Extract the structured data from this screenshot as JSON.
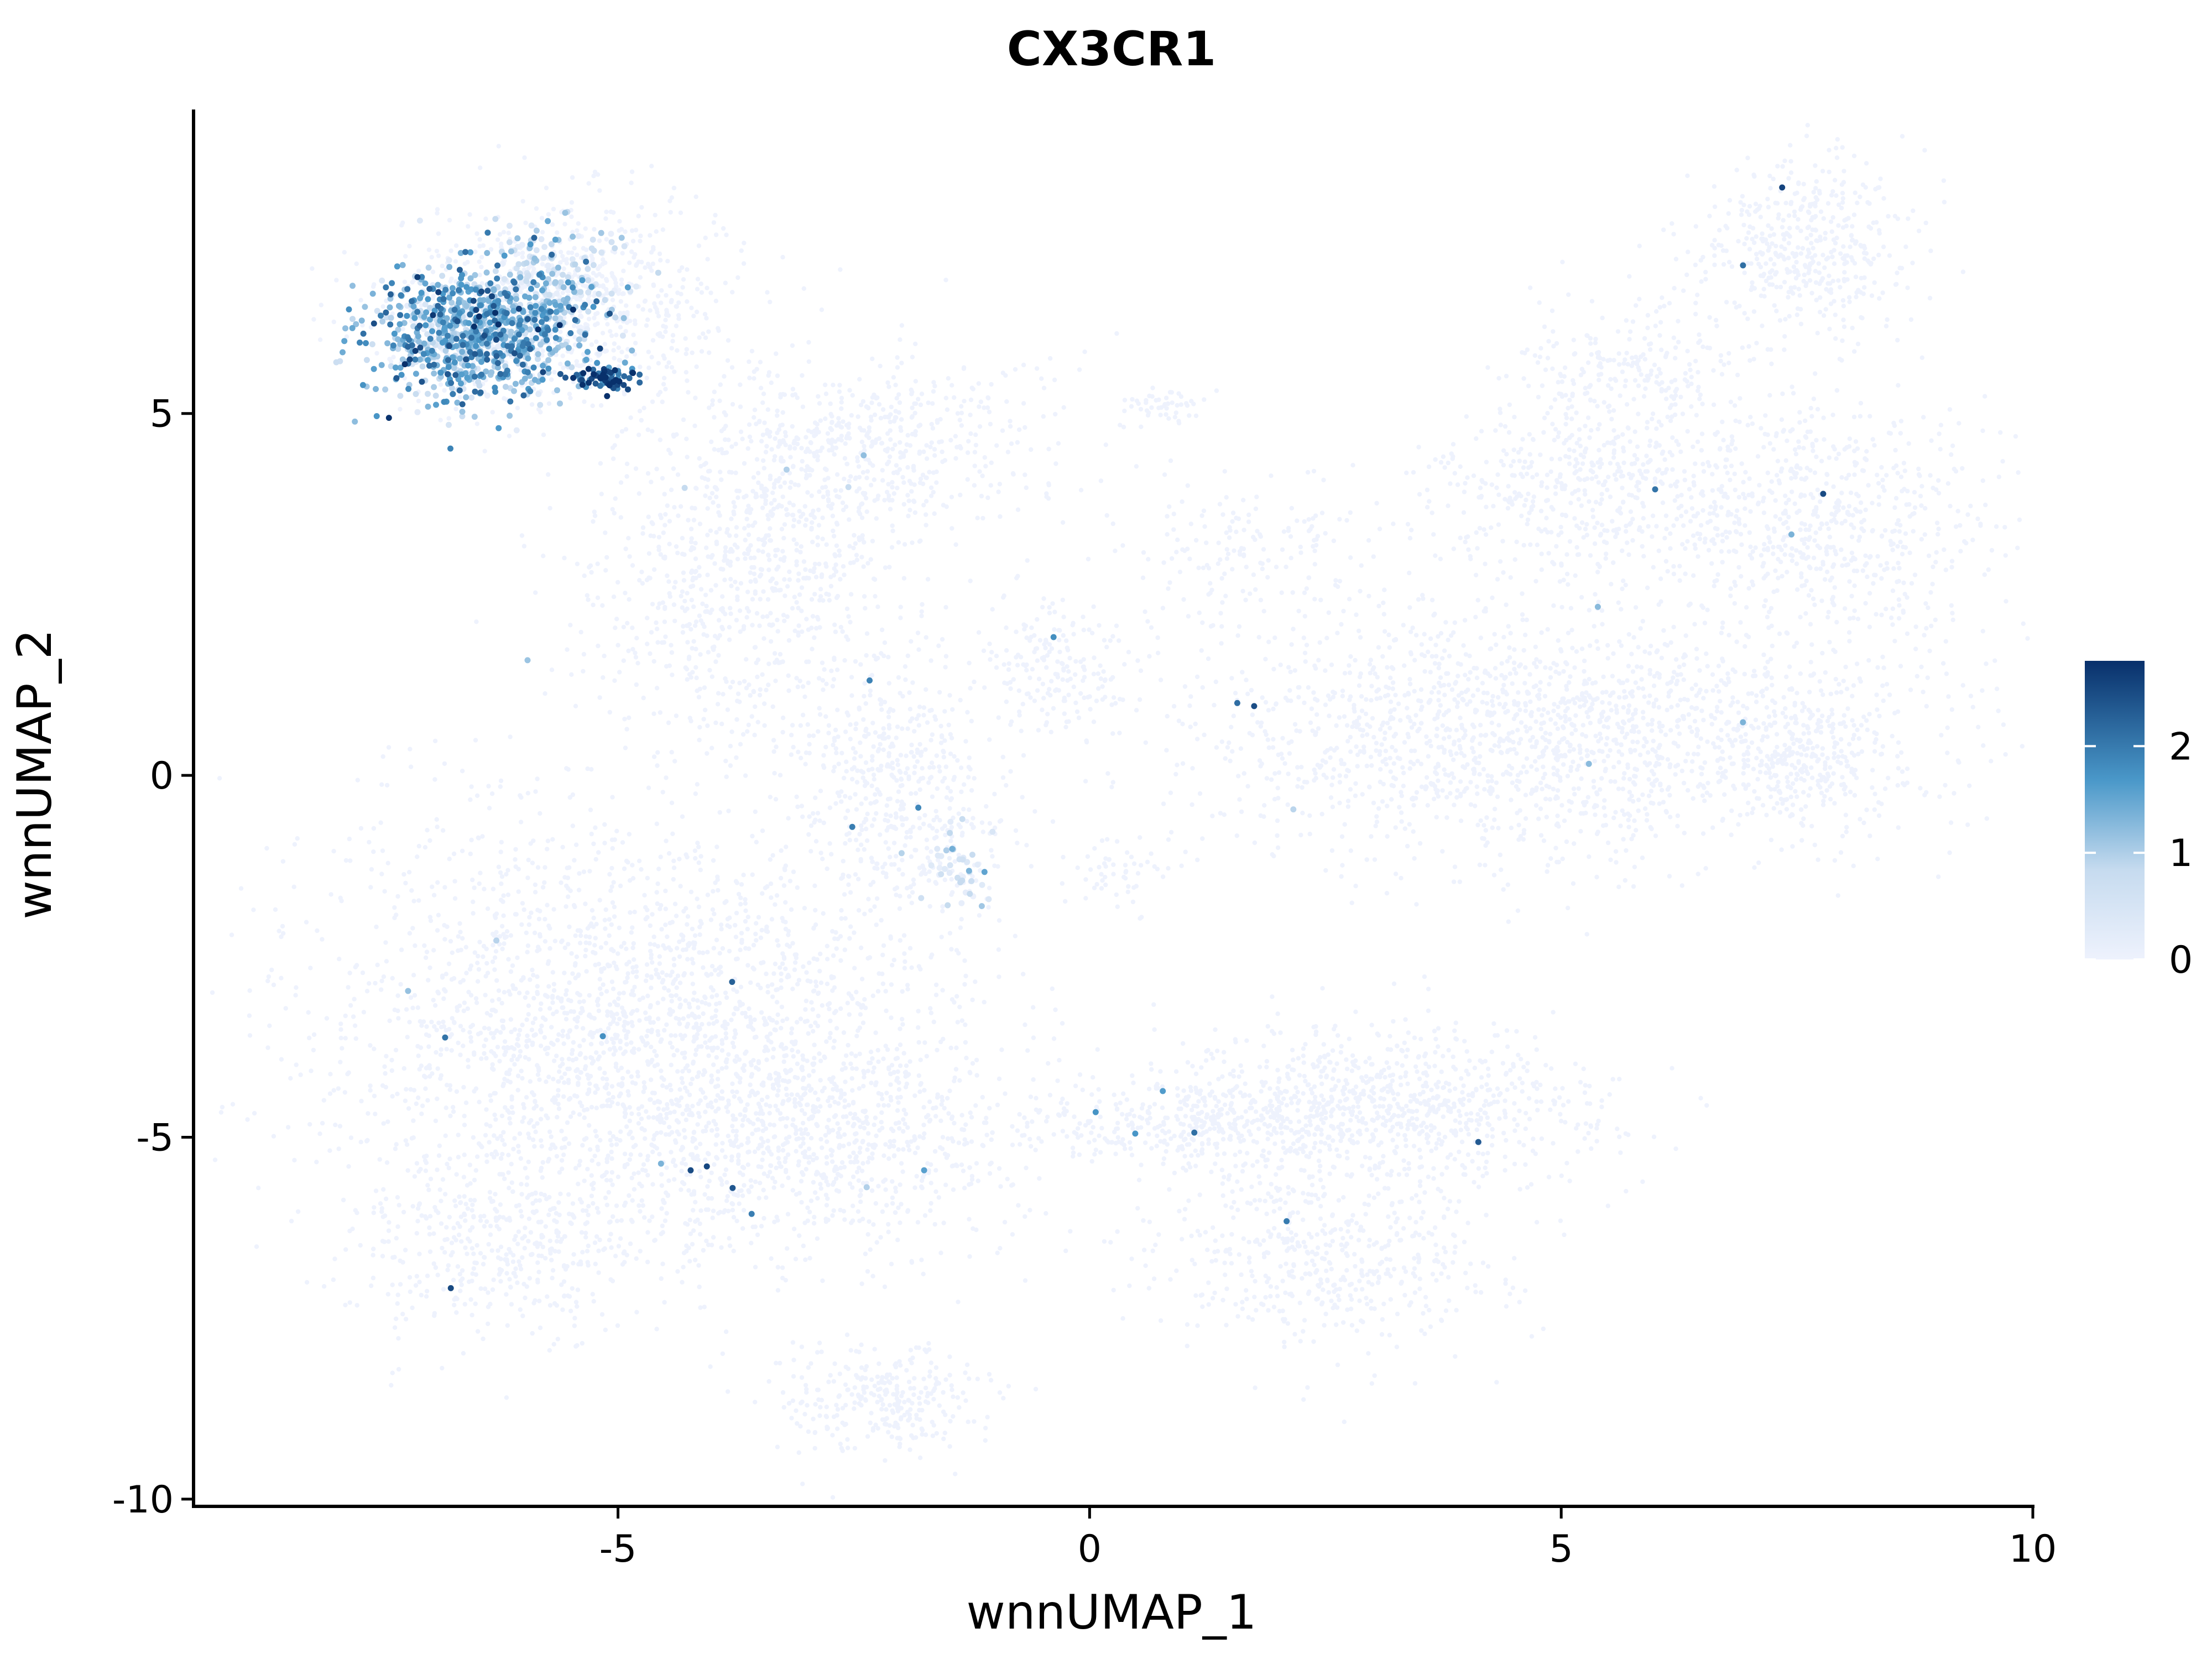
{
  "chart_data": {
    "type": "scatter",
    "title": "CX3CR1",
    "xlabel": "wnnUMAP_1",
    "ylabel": "wnnUMAP_2",
    "xlim": [
      -9.5,
      10
    ],
    "ylim": [
      -10.1,
      9.2
    ],
    "x_ticks": [
      {
        "value": -5,
        "label": "-5"
      },
      {
        "value": 0,
        "label": "0"
      },
      {
        "value": 5,
        "label": "5"
      },
      {
        "value": 10,
        "label": "10"
      }
    ],
    "y_ticks": [
      {
        "value": -10,
        "label": "-10"
      },
      {
        "value": -5,
        "label": "-5"
      },
      {
        "value": 0,
        "label": "0"
      },
      {
        "value": 5,
        "label": "5"
      }
    ],
    "grid": false,
    "legend": {
      "position": "right",
      "type": "colorbar",
      "min": 0,
      "max": 2.8,
      "ticks": [
        {
          "value": 0,
          "label": "0"
        },
        {
          "value": 1,
          "label": "1"
        },
        {
          "value": 2,
          "label": "2"
        }
      ],
      "color_low": "#eef2fd",
      "color_high": "#08306b"
    },
    "clusters": [
      {
        "cx": -5.5,
        "cy": 6.6,
        "sx": 0.9,
        "sy": 0.7,
        "n": 700,
        "expr": 0
      },
      {
        "cx": -3.5,
        "cy": 2.7,
        "sx": 0.9,
        "sy": 1.2,
        "n": 900,
        "expr": 0
      },
      {
        "cx": -2.3,
        "cy": 4.6,
        "sx": 0.9,
        "sy": 0.6,
        "n": 500,
        "expr": 0
      },
      {
        "cx": -2.0,
        "cy": -0.2,
        "sx": 0.55,
        "sy": 0.9,
        "n": 450,
        "expr": 0
      },
      {
        "cx": -1.4,
        "cy": -1.3,
        "sx": 0.2,
        "sy": 0.3,
        "n": 80,
        "expr": 0.2
      },
      {
        "cx": -0.4,
        "cy": 1.5,
        "sx": 0.4,
        "sy": 0.4,
        "n": 180,
        "expr": 0
      },
      {
        "cx": 0.3,
        "cy": -1.4,
        "sx": 0.25,
        "sy": 0.3,
        "n": 50,
        "expr": 0
      },
      {
        "cx": 0.8,
        "cy": 5.1,
        "sx": 0.25,
        "sy": 0.12,
        "n": 50,
        "expr": 0
      },
      {
        "cx": 1.7,
        "cy": 3.1,
        "sx": 0.7,
        "sy": 0.5,
        "n": 160,
        "expr": 0
      },
      {
        "cx": 4.8,
        "cy": 0.6,
        "sx": 2.0,
        "sy": 0.9,
        "n": 1800,
        "expr": 0
      },
      {
        "cx": 5.4,
        "cy": 3.9,
        "sx": 0.9,
        "sy": 0.6,
        "n": 500,
        "expr": 0
      },
      {
        "cx": 5.8,
        "cy": 5.6,
        "sx": 0.6,
        "sy": 0.5,
        "n": 250,
        "expr": 0
      },
      {
        "cx": 7.6,
        "cy": 7.3,
        "sx": 0.55,
        "sy": 0.6,
        "n": 450,
        "expr": 0
      },
      {
        "cx": 7.8,
        "cy": 3.5,
        "sx": 0.9,
        "sy": 0.9,
        "n": 650,
        "expr": 0
      },
      {
        "cx": 7.6,
        "cy": 0.2,
        "sx": 0.45,
        "sy": 0.45,
        "n": 250,
        "expr": 0
      },
      {
        "cx": -5.0,
        "cy": -3.4,
        "sx": 1.7,
        "sy": 1.4,
        "n": 2200,
        "expr": 0
      },
      {
        "cx": -3.0,
        "cy": -5.0,
        "sx": 1.2,
        "sy": 0.8,
        "n": 900,
        "expr": 0
      },
      {
        "cx": -6.2,
        "cy": -6.5,
        "sx": 0.8,
        "sy": 0.6,
        "n": 450,
        "expr": 0
      },
      {
        "cx": -2.2,
        "cy": -8.6,
        "sx": 0.6,
        "sy": 0.4,
        "n": 300,
        "expr": 0
      },
      {
        "cx": 3.0,
        "cy": -4.6,
        "sx": 1.2,
        "sy": 0.55,
        "n": 900,
        "expr": 0
      },
      {
        "cx": 2.5,
        "cy": -6.6,
        "sx": 0.9,
        "sy": 0.7,
        "n": 550,
        "expr": 0
      },
      {
        "cx": 0.9,
        "cy": -4.8,
        "sx": 0.8,
        "sy": 0.3,
        "n": 280,
        "expr": 0
      },
      {
        "cx": -6.5,
        "cy": 6.1,
        "sx": 0.55,
        "sy": 0.45,
        "n": 1100,
        "expr": 1.3
      },
      {
        "cx": -5.6,
        "cy": 6.9,
        "sx": 0.35,
        "sy": 0.45,
        "n": 200,
        "expr": 0.7
      },
      {
        "cx": -5.2,
        "cy": 5.5,
        "sx": 0.18,
        "sy": 0.08,
        "n": 90,
        "expr": 2.3
      }
    ]
  }
}
